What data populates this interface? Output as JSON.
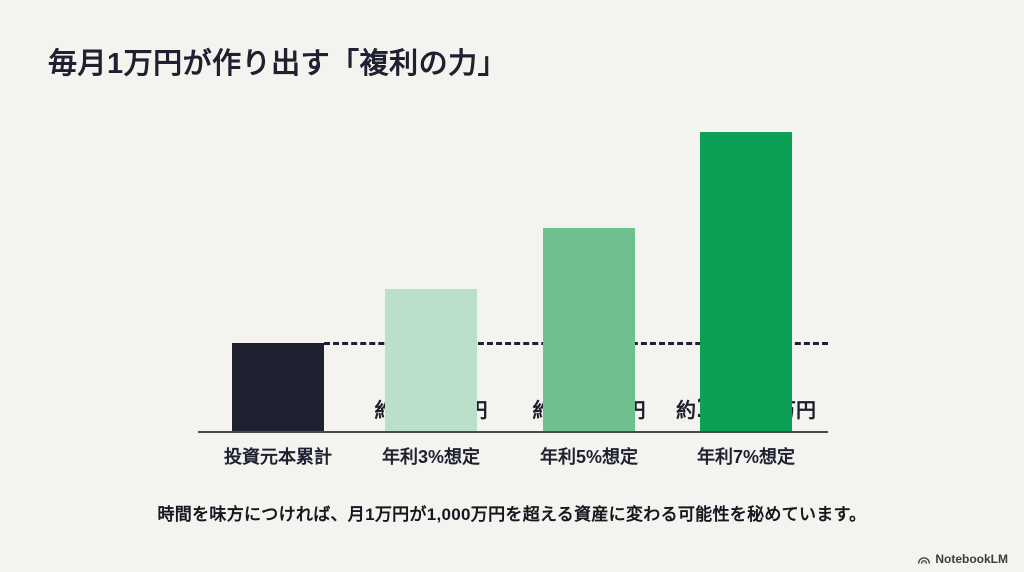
{
  "page": {
    "title": "毎月1万円が作り出す「複利の力」",
    "caption": "時間を味方につければ、月1万円が1,000万円を超える資産に変わる可能性を秘めています。",
    "watermark": "NotebookLM"
  },
  "chart_data": {
    "type": "bar",
    "title": "毎月1万円が作り出す「複利の力」",
    "categories": [
      "投資元本累計",
      "年利3%想定",
      "年利5%想定",
      "年利7%想定"
    ],
    "values": [
      360,
      583,
      832,
      1227
    ],
    "unit": "万円",
    "value_labels": [
      "360万円",
      "約583万円",
      "約832万円",
      "約1,227万円"
    ],
    "bars": [
      {
        "category": "投資元本累計",
        "value": 360,
        "prefix": "",
        "number": "360",
        "suffix": "万円",
        "color": "#1e2130"
      },
      {
        "category": "年利3%想定",
        "value": 583,
        "prefix": "約",
        "number": "583",
        "suffix": "万円",
        "color": "#bcdfca"
      },
      {
        "category": "年利5%想定",
        "value": 832,
        "prefix": "約",
        "number": "832",
        "suffix": "万円",
        "color": "#6fc08f"
      },
      {
        "category": "年利7%想定",
        "value": 1227,
        "prefix": "約",
        "number": "1,227",
        "suffix": "万円",
        "color": "#0e9f56"
      }
    ],
    "baseline": {
      "value": 360,
      "style": "dashed",
      "color": "#1e2130"
    },
    "ylim": [
      0,
      1300
    ],
    "grid": false,
    "legend": false,
    "axis_color": "#4a4a4a",
    "background": "#f4f3ef"
  }
}
